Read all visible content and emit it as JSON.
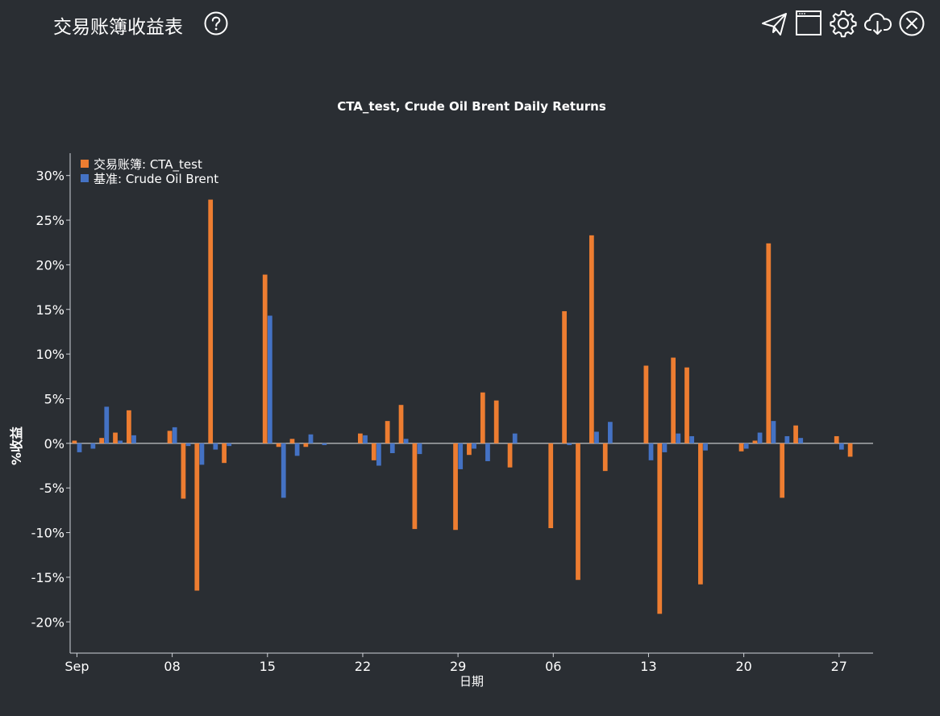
{
  "window": {
    "title": "交易账簿收益表"
  },
  "toolbar": {
    "items": [
      {
        "icon": "send-icon"
      },
      {
        "icon": "window-icon"
      },
      {
        "icon": "gear-icon"
      },
      {
        "icon": "cloud-download-icon"
      },
      {
        "icon": "close-icon"
      }
    ]
  },
  "colors": {
    "background": "#2a2e33",
    "book": "#ed7d31",
    "benchmark": "#4472c4",
    "axis": "#cfd3d8",
    "text": "#ffffff"
  },
  "chart_data": {
    "type": "bar",
    "title": "CTA_test, Crude Oil Brent Daily Returns",
    "xlabel": "日期",
    "ylabel": "%收益",
    "legend_position": "top-left",
    "grid": false,
    "ylim": [
      -23.5,
      32.5
    ],
    "y_ticks": [
      30,
      25,
      20,
      15,
      10,
      5,
      0,
      -5,
      -10,
      -15,
      -20
    ],
    "y_tick_labels": [
      "30%",
      "25%",
      "20%",
      "15%",
      "10%",
      "5%",
      "0%",
      "-5%",
      "-10%",
      "-15%",
      "-20%"
    ],
    "x_ticks": [
      "2020-09-01",
      "2020-09-08",
      "2020-09-15",
      "2020-09-22",
      "2020-09-29",
      "2020-10-06",
      "2020-10-13",
      "2020-10-20",
      "2020-10-27"
    ],
    "x_tick_labels": [
      "Sep",
      "08",
      "15",
      "22",
      "29",
      "06",
      "13",
      "20",
      "27"
    ],
    "xlim": [
      "2020-08-31 12:00",
      "2020-10-29 12:00"
    ],
    "series": [
      {
        "name": "交易账簿: CTA_test",
        "color": "#ed7d31",
        "points": [
          [
            "2020-09-01",
            0.3
          ],
          [
            "2020-09-03",
            0.6
          ],
          [
            "2020-09-04",
            1.2
          ],
          [
            "2020-09-05",
            3.7
          ],
          [
            "2020-09-08",
            1.4
          ],
          [
            "2020-09-09",
            -6.2
          ],
          [
            "2020-09-10",
            -16.5
          ],
          [
            "2020-09-11",
            27.3
          ],
          [
            "2020-09-12",
            -2.2
          ],
          [
            "2020-09-15",
            18.9
          ],
          [
            "2020-09-16",
            -0.4
          ],
          [
            "2020-09-17",
            0.5
          ],
          [
            "2020-09-18",
            -0.4
          ],
          [
            "2020-09-22",
            1.1
          ],
          [
            "2020-09-23",
            -1.9
          ],
          [
            "2020-09-24",
            2.5
          ],
          [
            "2020-09-25",
            4.3
          ],
          [
            "2020-09-26",
            -9.6
          ],
          [
            "2020-09-29",
            -9.7
          ],
          [
            "2020-09-30",
            -1.3
          ],
          [
            "2020-10-01",
            5.7
          ],
          [
            "2020-10-02",
            4.8
          ],
          [
            "2020-10-03",
            -2.7
          ],
          [
            "2020-10-06",
            -9.5
          ],
          [
            "2020-10-07",
            14.8
          ],
          [
            "2020-10-08",
            -15.3
          ],
          [
            "2020-10-09",
            23.3
          ],
          [
            "2020-10-10",
            -3.1
          ],
          [
            "2020-10-13",
            8.7
          ],
          [
            "2020-10-14",
            -19.1
          ],
          [
            "2020-10-15",
            9.6
          ],
          [
            "2020-10-16",
            8.5
          ],
          [
            "2020-10-17",
            -15.8
          ],
          [
            "2020-10-20",
            -0.9
          ],
          [
            "2020-10-21",
            0.3
          ],
          [
            "2020-10-22",
            22.4
          ],
          [
            "2020-10-23",
            -6.1
          ],
          [
            "2020-10-24",
            2.0
          ],
          [
            "2020-10-27",
            0.8
          ],
          [
            "2020-10-28",
            -1.5
          ]
        ]
      },
      {
        "name": "基准: Crude Oil Brent",
        "color": "#4472c4",
        "points": [
          [
            "2020-09-01",
            -1.0
          ],
          [
            "2020-09-02",
            -0.6
          ],
          [
            "2020-09-03",
            4.1
          ],
          [
            "2020-09-04",
            0.3
          ],
          [
            "2020-09-05",
            0.9
          ],
          [
            "2020-09-08",
            1.8
          ],
          [
            "2020-09-09",
            -0.3
          ],
          [
            "2020-09-10",
            -2.4
          ],
          [
            "2020-09-11",
            -0.7
          ],
          [
            "2020-09-12",
            -0.3
          ],
          [
            "2020-09-15",
            14.3
          ],
          [
            "2020-09-16",
            -6.1
          ],
          [
            "2020-09-17",
            -1.4
          ],
          [
            "2020-09-18",
            1.0
          ],
          [
            "2020-09-19",
            -0.2
          ],
          [
            "2020-09-22",
            0.9
          ],
          [
            "2020-09-23",
            -2.5
          ],
          [
            "2020-09-24",
            -1.1
          ],
          [
            "2020-09-25",
            0.5
          ],
          [
            "2020-09-26",
            -1.2
          ],
          [
            "2020-09-29",
            -2.9
          ],
          [
            "2020-09-30",
            -0.6
          ],
          [
            "2020-10-01",
            -2.0
          ],
          [
            "2020-10-03",
            1.1
          ],
          [
            "2020-10-07",
            -0.2
          ],
          [
            "2020-10-09",
            1.3
          ],
          [
            "2020-10-10",
            2.4
          ],
          [
            "2020-10-13",
            -1.9
          ],
          [
            "2020-10-14",
            -1.0
          ],
          [
            "2020-10-15",
            1.1
          ],
          [
            "2020-10-16",
            0.8
          ],
          [
            "2020-10-17",
            -0.8
          ],
          [
            "2020-10-20",
            -0.6
          ],
          [
            "2020-10-21",
            1.2
          ],
          [
            "2020-10-22",
            2.5
          ],
          [
            "2020-10-23",
            0.8
          ],
          [
            "2020-10-24",
            0.6
          ],
          [
            "2020-10-27",
            -0.7
          ]
        ]
      }
    ]
  }
}
